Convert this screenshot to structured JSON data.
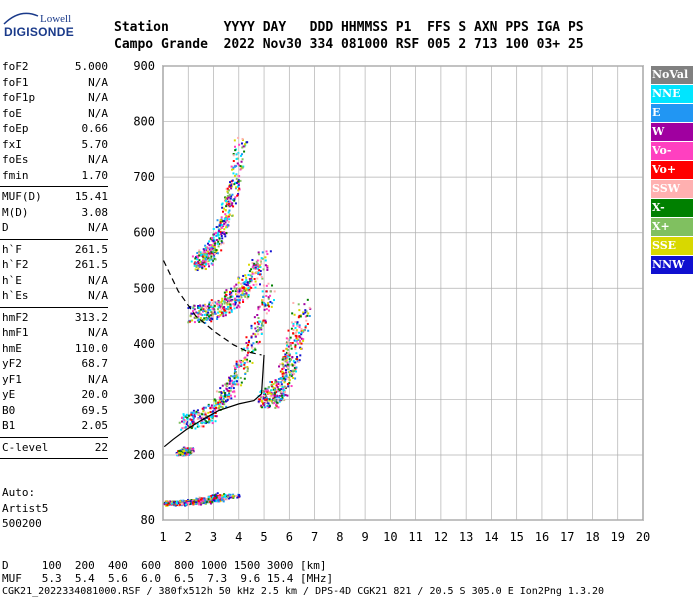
{
  "logo": {
    "line1": "Lowell",
    "line2": "DIGISONDE"
  },
  "header": {
    "line1": "Station       YYYY DAY   DDD HHMMSS P1  FFS S AXN PPS IGA PS",
    "line2": "Campo Grande  2022 Nov30 334 081000 RSF 005 2 713 100 03+ 25"
  },
  "params": [
    {
      "name": "foF2",
      "value": "5.000",
      "sep_after": false
    },
    {
      "name": "foF1",
      "value": "N/A",
      "sep_after": false
    },
    {
      "name": "foF1p",
      "value": "N/A",
      "sep_after": false
    },
    {
      "name": "foE",
      "value": "N/A",
      "sep_after": false
    },
    {
      "name": "foEp",
      "value": "0.66",
      "sep_after": false
    },
    {
      "name": "fxI",
      "value": "5.70",
      "sep_after": false
    },
    {
      "name": "foEs",
      "value": "N/A",
      "sep_after": false
    },
    {
      "name": "fmin",
      "value": "1.70",
      "sep_after": true
    },
    {
      "name": "MUF(D)",
      "value": "15.41",
      "sep_after": false
    },
    {
      "name": "M(D)",
      "value": "3.08",
      "sep_after": false
    },
    {
      "name": "D",
      "value": "N/A",
      "sep_after": true
    },
    {
      "name": "h`F",
      "value": "261.5",
      "sep_after": false
    },
    {
      "name": "h`F2",
      "value": "261.5",
      "sep_after": false
    },
    {
      "name": "h`E",
      "value": "N/A",
      "sep_after": false
    },
    {
      "name": "h`Es",
      "value": "N/A",
      "sep_after": true
    },
    {
      "name": "hmF2",
      "value": "313.2",
      "sep_after": false
    },
    {
      "name": "hmF1",
      "value": "N/A",
      "sep_after": false
    },
    {
      "name": "hmE",
      "value": "110.0",
      "sep_after": false
    },
    {
      "name": "yF2",
      "value": "68.7",
      "sep_after": false
    },
    {
      "name": "yF1",
      "value": "N/A",
      "sep_after": false
    },
    {
      "name": "yE",
      "value": "20.0",
      "sep_after": false
    },
    {
      "name": "B0",
      "value": "69.5",
      "sep_after": false
    },
    {
      "name": "B1",
      "value": "2.05",
      "sep_after": true
    },
    {
      "name": "C-level",
      "value": "22",
      "sep_after": true
    }
  ],
  "auto": {
    "line1": "Auto:",
    "line2": "Artist5",
    "line3": "500200"
  },
  "legend": [
    {
      "label": "NoVal",
      "color": "#808080"
    },
    {
      "label": "NNE",
      "color": "#00e5ff"
    },
    {
      "label": "E",
      "color": "#2196f3"
    },
    {
      "label": "W",
      "color": "#a000a0"
    },
    {
      "label": "Vo-",
      "color": "#ff40c0"
    },
    {
      "label": "Vo+",
      "color": "#ff0000"
    },
    {
      "label": "SSW",
      "color": "#ffb0b0"
    },
    {
      "label": "X-",
      "color": "#008000"
    },
    {
      "label": "X+",
      "color": "#80c060"
    },
    {
      "label": "SSE",
      "color": "#d8d800"
    },
    {
      "label": "NNW",
      "color": "#1010d0"
    }
  ],
  "footer": {
    "line1": "D     100  200  400  600  800 1000 1500 3000 [km]",
    "line2": "MUF   5.3  5.4  5.6  6.0  6.5  7.3  9.6 15.4 [MHz]",
    "line3": "CGK21_2022334081000.RSF / 380fx512h 50 kHz 2.5 km / DPS-4D CGK21 821 / 20.5 S 305.0 E Ion2Png 1.3.20"
  },
  "chart_data": {
    "type": "scatter",
    "x_ticks": [
      1,
      2,
      3,
      4,
      5,
      6,
      7,
      8,
      9,
      10,
      11,
      12,
      13,
      14,
      15,
      16,
      17,
      18,
      19,
      20
    ],
    "y_ticks": [
      80,
      200,
      300,
      400,
      500,
      600,
      700,
      800,
      900
    ],
    "xlim": [
      1,
      20
    ],
    "ylim": [
      80,
      900
    ],
    "x_scale": "log",
    "grid": true,
    "profile_line": {
      "x": [
        1.05,
        1.4,
        1.9,
        2.5,
        3.2,
        4.0,
        4.6,
        4.9,
        5.0
      ],
      "y": [
        215,
        228,
        245,
        262,
        280,
        292,
        298,
        310,
        380
      ]
    },
    "dashed_line": {
      "x": [
        1.02,
        1.6,
        2.3,
        3.1,
        3.8,
        4.4,
        4.9
      ],
      "y": [
        550,
        495,
        450,
        420,
        398,
        385,
        380
      ]
    },
    "echo_clusters": [
      {
        "x": [
          1.8,
          5.2
        ],
        "y": [
          262,
          500
        ],
        "dx": 0.12,
        "dy": 8
      },
      {
        "x": [
          2.2,
          5.0
        ],
        "y": [
          455,
          560
        ],
        "dx": 0.15,
        "dy": 8
      },
      {
        "x": [
          2.3,
          4.1
        ],
        "y": [
          550,
          770
        ],
        "dx": 0.12,
        "dy": 8
      },
      {
        "x": [
          5.0,
          6.5
        ],
        "y": [
          300,
          470
        ],
        "dx": 0.18,
        "dy": 8
      },
      {
        "x": [
          1.1,
          3.6
        ],
        "y": [
          112,
          128
        ],
        "dx": 0.25,
        "dy": 2
      },
      {
        "x": [
          1.7,
          2.0
        ],
        "y": [
          205,
          212
        ],
        "dx": 0.1,
        "dy": 2
      }
    ]
  }
}
